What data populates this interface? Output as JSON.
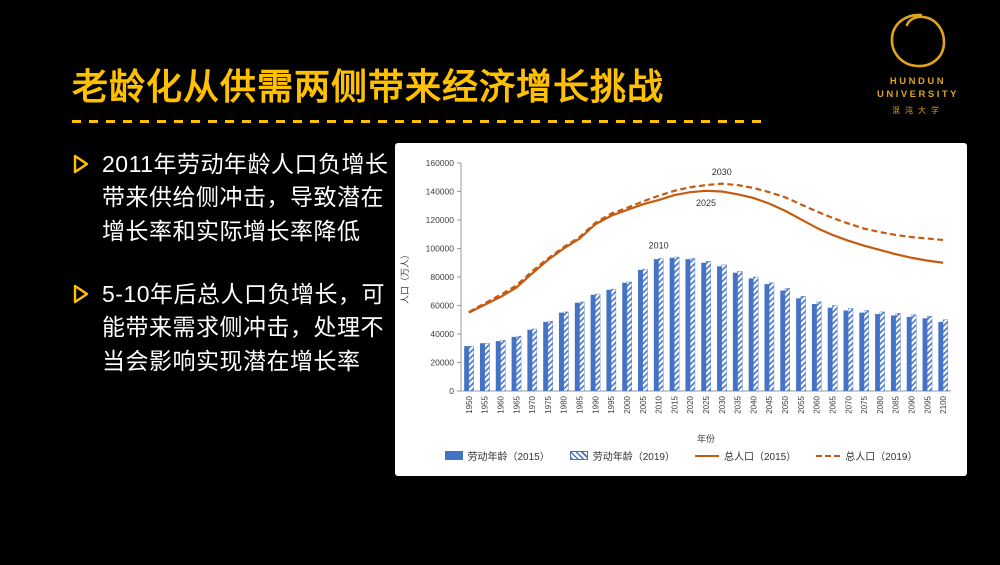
{
  "slide": {
    "title": "老龄化从供需两侧带来经济增长挑战",
    "bullets": [
      "2011年劳动年龄人口负增长带来供给侧冲击，导致潜在增长率和实际增长率降低",
      "5-10年后总人口负增长，可能带来需求侧冲击，处理不当会影响实现潜在增长率"
    ]
  },
  "logo": {
    "line1": "HUNDUN",
    "line2": "UNIVERSITY",
    "line3": "混沌大学"
  },
  "colors": {
    "accent": "#FFC000",
    "background": "#000000",
    "bar_blue": "#4472C4",
    "line_orange": "#C55A11"
  },
  "chart_data": {
    "type": "bar",
    "subtype": "bar+line combo",
    "xlabel": "年份",
    "ylabel": "人口（万人）",
    "ylim": [
      0,
      160000
    ],
    "ytick_step": 20000,
    "grid": false,
    "legend_position": "bottom",
    "categories": [
      1950,
      1955,
      1960,
      1965,
      1970,
      1975,
      1980,
      1985,
      1990,
      1995,
      2000,
      2005,
      2010,
      2015,
      2020,
      2025,
      2030,
      2035,
      2040,
      2045,
      2050,
      2055,
      2060,
      2065,
      2070,
      2075,
      2080,
      2085,
      2090,
      2095,
      2100
    ],
    "series": [
      {
        "name": "劳动年龄（2015）",
        "type": "bar",
        "style": "solid",
        "color": "#4472C4",
        "values": [
          31500,
          33500,
          35000,
          38000,
          43000,
          48500,
          55000,
          62000,
          67500,
          71000,
          76000,
          85000,
          92500,
          93500,
          92500,
          90000,
          87500,
          83000,
          79000,
          75000,
          70500,
          65000,
          61000,
          58500,
          56500,
          55000,
          54000,
          53000,
          52000,
          51000,
          48500
        ]
      },
      {
        "name": "劳动年龄（2019）",
        "type": "bar",
        "style": "hatched",
        "color": "#4472C4",
        "values": [
          31500,
          33500,
          35500,
          38500,
          43500,
          49000,
          55500,
          62500,
          68000,
          71500,
          76500,
          85500,
          93000,
          94000,
          93000,
          91000,
          88500,
          84000,
          80000,
          76000,
          72000,
          66500,
          62500,
          60000,
          58000,
          56500,
          55500,
          54500,
          53500,
          52500,
          50000
        ]
      },
      {
        "name": "总人口（2015）",
        "type": "line",
        "style": "solid",
        "color": "#C55A11",
        "values": [
          55000,
          60500,
          66000,
          72500,
          82500,
          92000,
          100000,
          107000,
          117000,
          123000,
          127000,
          131000,
          134000,
          137500,
          139500,
          140500,
          140000,
          138000,
          135500,
          131500,
          126500,
          120500,
          114500,
          109500,
          105500,
          102000,
          99000,
          96000,
          93500,
          91500,
          90000
        ]
      },
      {
        "name": "总人口（2019）",
        "type": "line",
        "style": "dashed",
        "color": "#C55A11",
        "values": [
          55500,
          61500,
          67500,
          74000,
          84000,
          93000,
          101000,
          108000,
          118000,
          124500,
          128500,
          133000,
          137000,
          140500,
          143000,
          144500,
          145500,
          144500,
          142500,
          139500,
          136000,
          131000,
          126000,
          121500,
          117500,
          114000,
          111500,
          109500,
          108000,
          107000,
          106000
        ]
      }
    ],
    "annotations": [
      {
        "text": "2010",
        "x": 2010,
        "y": 100000
      },
      {
        "text": "2025",
        "x": 2025,
        "y": 130000
      },
      {
        "text": "2030",
        "x": 2030,
        "y": 151500
      }
    ]
  }
}
